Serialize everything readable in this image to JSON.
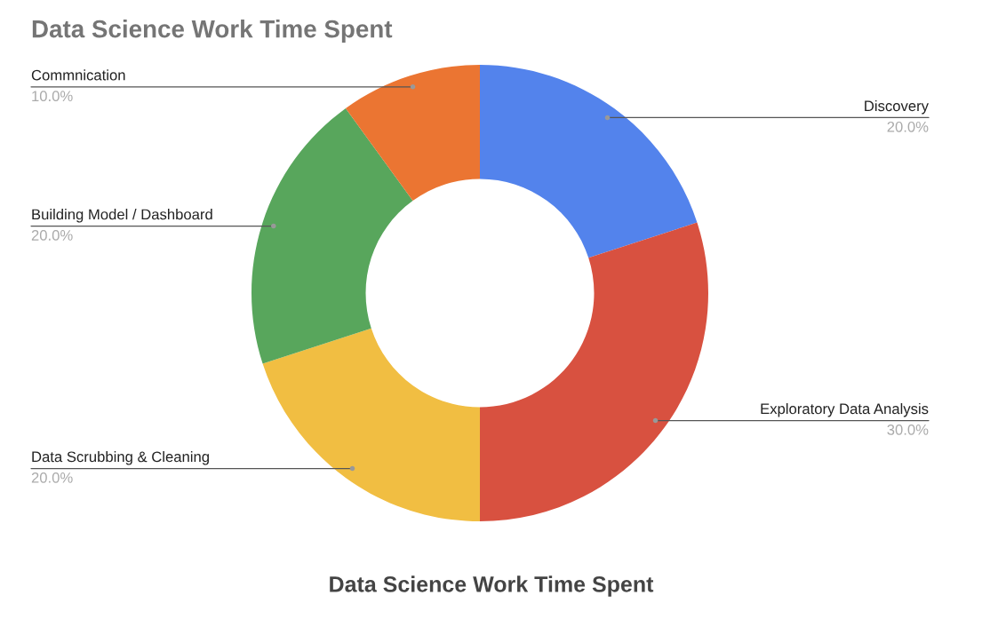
{
  "chart_data": {
    "type": "donut",
    "title": "Data Science Work Time Spent",
    "categories": [
      "Discovery",
      "Exploratory Data Analysis",
      "Data Scrubbing & Cleaning",
      "Building Model / Dashboard",
      "Commnication"
    ],
    "values": [
      20,
      30,
      20,
      20,
      10
    ],
    "colors": [
      "#5383ec",
      "#d85140",
      "#f1be42",
      "#58a65c",
      "#eb7532"
    ],
    "value_labels": [
      "20.0%",
      "30.0%",
      "20.0%",
      "20.0%",
      "10.0%"
    ],
    "annotations": [
      "Data Science Work Time Spent"
    ]
  }
}
